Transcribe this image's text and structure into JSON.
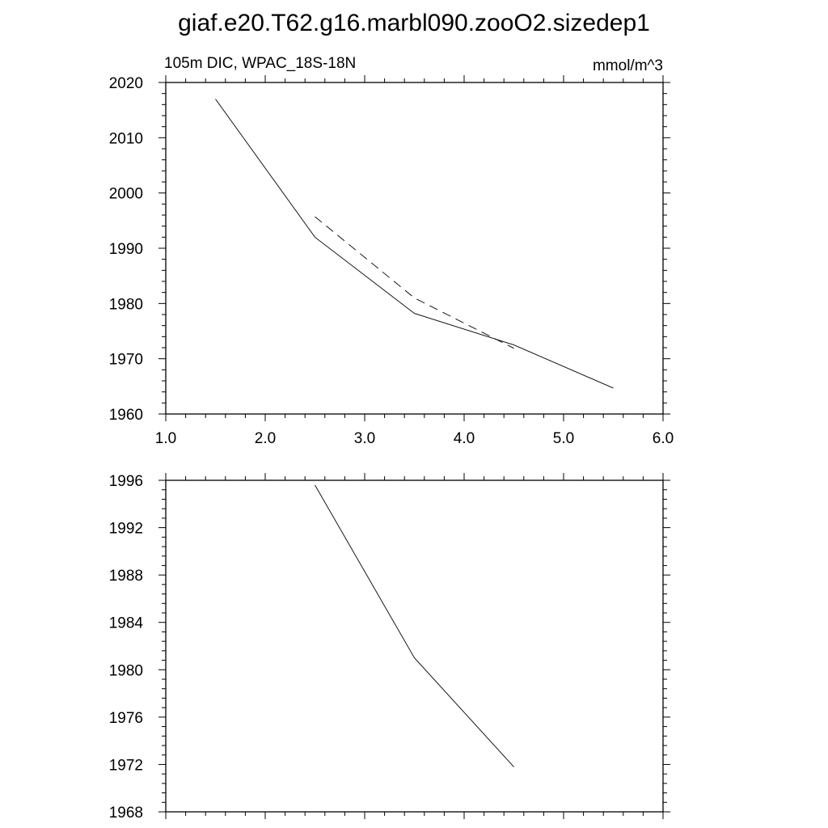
{
  "title": "giaf.e20.T62.g16.marbl090.zooO2.sizedep1",
  "left_string": "105m DIC, WPAC_18S-18N",
  "right_string": "mmol/m^3",
  "chart_data": [
    {
      "type": "line",
      "xlim": [
        1.0,
        6.0
      ],
      "ylim": [
        1960,
        2020
      ],
      "x_ticks": [
        "1.0",
        "2.0",
        "3.0",
        "4.0",
        "5.0",
        "6.0"
      ],
      "y_ticks": [
        "1960",
        "1970",
        "1980",
        "1990",
        "2000",
        "2010",
        "2020"
      ],
      "grid": false,
      "series": [
        {
          "style": "solid",
          "x": [
            1.5,
            2.5,
            3.5,
            4.5,
            5.5
          ],
          "y": [
            2017,
            1992,
            1978.2,
            1972.5,
            1964.7
          ]
        },
        {
          "style": "dashed",
          "x": [
            2.5,
            3.5,
            4.5
          ],
          "y": [
            1995.7,
            1981,
            1971.9
          ]
        }
      ]
    },
    {
      "type": "line",
      "xlim": [
        1.0,
        6.0
      ],
      "ylim": [
        1968,
        1996
      ],
      "y_ticks": [
        "1968",
        "1972",
        "1976",
        "1980",
        "1984",
        "1988",
        "1992",
        "1996"
      ],
      "grid": false,
      "series": [
        {
          "style": "solid",
          "x": [
            2.5,
            3.5,
            4.5
          ],
          "y": [
            1995.6,
            1981,
            1971.8
          ]
        }
      ]
    }
  ]
}
